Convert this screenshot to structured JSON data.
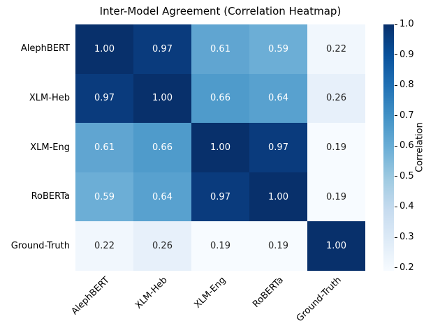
{
  "figure": {
    "background": "#ffffff",
    "text_color": "#000000"
  },
  "chart_data": {
    "type": "heatmap",
    "title": "Inter-Model Agreement (Correlation Heatmap)",
    "categories": [
      "AlephBERT",
      "XLM-Heb",
      "XLM-Eng",
      "RoBERTa",
      "Ground-Truth"
    ],
    "x_tick_labels": [
      "AlephBERT",
      "XLM-Heb",
      "XLM-Eng",
      "RoBERTa",
      "Ground-Truth"
    ],
    "y_tick_labels": [
      "AlephBERT",
      "XLM-Heb",
      "XLM-Eng",
      "RoBERTa",
      "Ground-Truth"
    ],
    "matrix": [
      [
        1.0,
        0.97,
        0.61,
        0.59,
        0.22
      ],
      [
        0.97,
        1.0,
        0.66,
        0.64,
        0.26
      ],
      [
        0.61,
        0.66,
        1.0,
        0.97,
        0.19
      ],
      [
        0.59,
        0.64,
        0.97,
        1.0,
        0.19
      ],
      [
        0.22,
        0.26,
        0.19,
        0.19,
        1.0
      ]
    ],
    "cell_colors": [
      [
        "#08306b",
        "#0a3b7d",
        "#60a5d1",
        "#6caed6",
        "#f1f7fd"
      ],
      [
        "#0a3b7d",
        "#08306b",
        "#4f9bcb",
        "#58a1cf",
        "#e7f0fa"
      ],
      [
        "#60a5d1",
        "#4f9bcb",
        "#08306b",
        "#0a3b7d",
        "#f7fbff"
      ],
      [
        "#6caed6",
        "#58a1cf",
        "#0a3b7d",
        "#08306b",
        "#f7fbff"
      ],
      [
        "#f1f7fd",
        "#e7f0fa",
        "#f7fbff",
        "#f7fbff",
        "#08306b"
      ]
    ],
    "annot_color_light": "#ffffff",
    "annot_color_dark": "#262626",
    "annot_dark_threshold": 0.5,
    "colormap": "Blues",
    "vmin": 0.19,
    "vmax": 1.0,
    "grid": false,
    "colorbar": {
      "label": "Correlation",
      "tick_values": [
        1.0,
        0.9,
        0.8,
        0.7,
        0.6,
        0.5,
        0.4,
        0.3,
        0.2
      ],
      "tick_labels": [
        "1.0",
        "0.9",
        "0.8",
        "0.7",
        "0.6",
        "0.5",
        "0.4",
        "0.3",
        "0.2"
      ],
      "gradient_top_to_bottom": [
        "#08306b",
        "#08519c",
        "#2171b5",
        "#4292c6",
        "#6baed6",
        "#9ecae1",
        "#c6dbef",
        "#deebf7",
        "#f7fbff"
      ]
    }
  }
}
